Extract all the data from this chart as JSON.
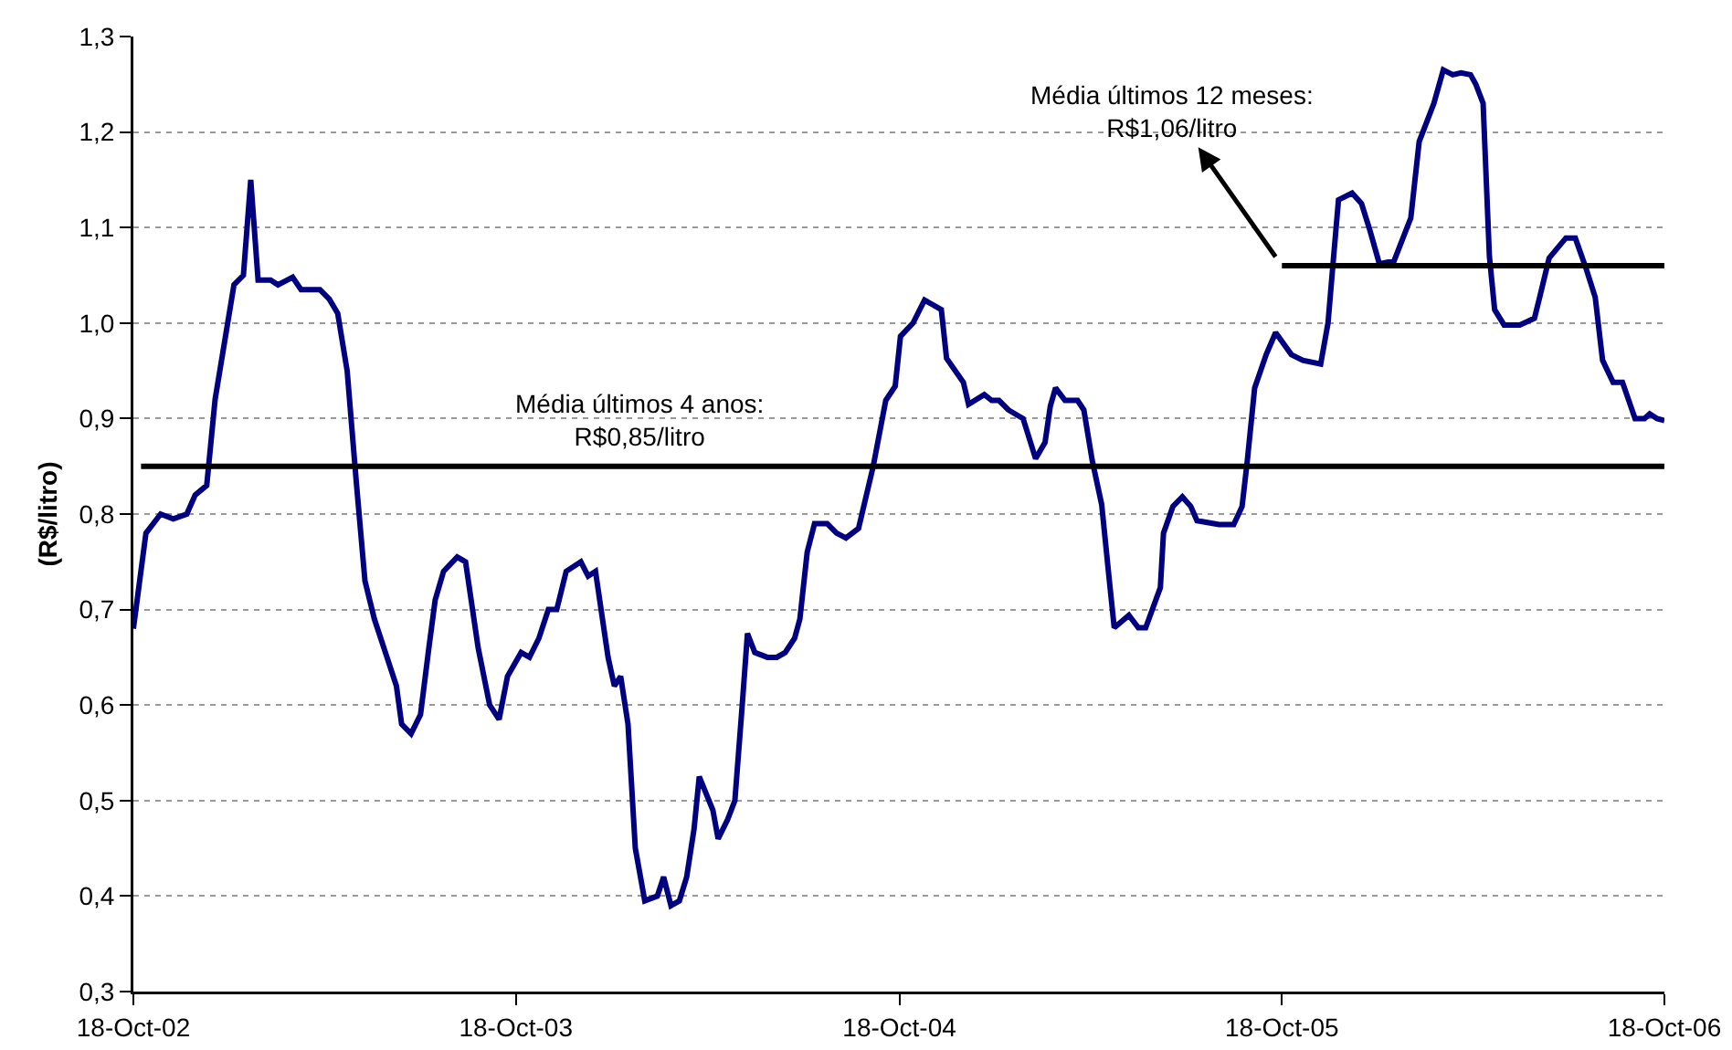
{
  "chart_data": {
    "type": "line",
    "ylabel": "(R$/litro)",
    "xlim": [
      "2002-10-18",
      "2006-10-18"
    ],
    "xticks": [
      {
        "value": "2002-10-18",
        "label": "18-Oct-02"
      },
      {
        "value": "2003-10-18",
        "label": "18-Oct-03"
      },
      {
        "value": "2004-10-18",
        "label": "18-Oct-04"
      },
      {
        "value": "2005-10-18",
        "label": "18-Oct-05"
      },
      {
        "value": "2006-10-18",
        "label": "18-Oct-06"
      }
    ],
    "ylim": [
      0.3,
      1.3
    ],
    "yticks": [
      {
        "value": 0.3,
        "label": "0,3"
      },
      {
        "value": 0.4,
        "label": "0,4"
      },
      {
        "value": 0.5,
        "label": "0,5"
      },
      {
        "value": 0.6,
        "label": "0,6"
      },
      {
        "value": 0.7,
        "label": "0,7"
      },
      {
        "value": 0.8,
        "label": "0,8"
      },
      {
        "value": 0.9,
        "label": "0,9"
      },
      {
        "value": 1.0,
        "label": "1,0"
      },
      {
        "value": 1.1,
        "label": "1,1"
      },
      {
        "value": 1.2,
        "label": "1,2"
      },
      {
        "value": 1.3,
        "label": "1,3"
      }
    ],
    "grid": "y",
    "marker": "none",
    "line_style": "solid",
    "series": [
      {
        "color": "#000080",
        "x": [
          "2002-10-18",
          "2002-10-30",
          "2002-11-13",
          "2002-11-25",
          "2002-12-08",
          "2002-12-16",
          "2002-12-27",
          "2003-01-04",
          "2003-01-13",
          "2003-01-22",
          "2003-01-31",
          "2003-02-07",
          "2003-02-14",
          "2003-02-26",
          "2003-03-05",
          "2003-03-19",
          "2003-03-27",
          "2003-04-14",
          "2003-04-23",
          "2003-05-01",
          "2003-05-10",
          "2003-05-19",
          "2003-05-27",
          "2003-06-05",
          "2003-06-17",
          "2003-06-26",
          "2003-07-01",
          "2003-07-10",
          "2003-07-19",
          "2003-07-27",
          "2003-08-02",
          "2003-08-10",
          "2003-08-23",
          "2003-08-31",
          "2003-09-12",
          "2003-09-23",
          "2003-10-02",
          "2003-10-10",
          "2003-10-23",
          "2003-10-31",
          "2003-11-09",
          "2003-11-18",
          "2003-11-26",
          "2003-12-05",
          "2003-12-19",
          "2003-12-26",
          "2004-01-02",
          "2004-01-14",
          "2004-01-20",
          "2004-01-26",
          "2004-02-02",
          "2004-02-09",
          "2004-02-18",
          "2004-03-01",
          "2004-03-07",
          "2004-03-14",
          "2004-03-22",
          "2004-03-29",
          "2004-04-05",
          "2004-04-10",
          "2004-04-23",
          "2004-04-28",
          "2004-05-07",
          "2004-05-14",
          "2004-05-21",
          "2004-05-26",
          "2004-06-02",
          "2004-06-14",
          "2004-06-23",
          "2004-07-01",
          "2004-07-10",
          "2004-07-15",
          "2004-07-22",
          "2004-07-29",
          "2004-08-10",
          "2004-08-19",
          "2004-08-28",
          "2004-09-09",
          "2004-09-23",
          "2004-10-05",
          "2004-10-14",
          "2004-10-19",
          "2004-10-31",
          "2004-11-11",
          "2004-11-27",
          "2004-12-02",
          "2004-12-18",
          "2004-12-23",
          "2005-01-07",
          "2005-01-14",
          "2005-01-21",
          "2005-01-30",
          "2005-02-13",
          "2005-02-25",
          "2005-03-06",
          "2005-03-11",
          "2005-03-16",
          "2005-03-25",
          "2005-04-06",
          "2005-04-12",
          "2005-04-20",
          "2005-04-29",
          "2005-05-06",
          "2005-05-11",
          "2005-05-25",
          "2005-06-03",
          "2005-06-10",
          "2005-06-24",
          "2005-06-27",
          "2005-07-06",
          "2005-07-15",
          "2005-07-23",
          "2005-07-29",
          "2005-08-19",
          "2005-09-02",
          "2005-09-10",
          "2005-09-15",
          "2005-09-22",
          "2005-10-03",
          "2005-10-12",
          "2005-10-27",
          "2005-11-07",
          "2005-11-24",
          "2005-12-01",
          "2005-12-06",
          "2005-12-11",
          "2005-12-24",
          "2006-01-02",
          "2006-01-10",
          "2006-01-19",
          "2006-02-02",
          "2006-02-18",
          "2006-02-26",
          "2006-03-12",
          "2006-03-21",
          "2006-03-30",
          "2006-04-07",
          "2006-04-16",
          "2006-04-21",
          "2006-04-28",
          "2006-05-04",
          "2006-05-09",
          "2006-05-18",
          "2006-06-02",
          "2006-06-16",
          "2006-06-21",
          "2006-06-30",
          "2006-07-16",
          "2006-07-25",
          "2006-08-04",
          "2006-08-13",
          "2006-08-20",
          "2006-08-30",
          "2006-09-08",
          "2006-09-20",
          "2006-09-29",
          "2006-10-04",
          "2006-10-11",
          "2006-10-18"
        ],
        "values": [
          0.68,
          0.78,
          0.8,
          0.795,
          0.8,
          0.82,
          0.83,
          0.92,
          0.98,
          1.04,
          1.05,
          1.15,
          1.045,
          1.045,
          1.04,
          1.048,
          1.035,
          1.035,
          1.025,
          1.01,
          0.95,
          0.83,
          0.73,
          0.69,
          0.65,
          0.62,
          0.58,
          0.57,
          0.59,
          0.66,
          0.71,
          0.74,
          0.755,
          0.75,
          0.66,
          0.6,
          0.585,
          0.63,
          0.655,
          0.65,
          0.67,
          0.7,
          0.7,
          0.74,
          0.75,
          0.735,
          0.74,
          0.65,
          0.62,
          0.63,
          0.58,
          0.45,
          0.395,
          0.4,
          0.42,
          0.39,
          0.395,
          0.42,
          0.47,
          0.525,
          0.49,
          0.46,
          0.48,
          0.5,
          0.6,
          0.675,
          0.655,
          0.65,
          0.65,
          0.655,
          0.67,
          0.69,
          0.76,
          0.79,
          0.79,
          0.78,
          0.775,
          0.785,
          0.85,
          0.919,
          0.934,
          0.986,
          1.0,
          1.024,
          1.014,
          0.963,
          0.938,
          0.915,
          0.925,
          0.919,
          0.919,
          0.909,
          0.9,
          0.858,
          0.875,
          0.913,
          0.932,
          0.919,
          0.919,
          0.909,
          0.856,
          0.81,
          0.734,
          0.681,
          0.694,
          0.681,
          0.681,
          0.723,
          0.78,
          0.808,
          0.818,
          0.808,
          0.793,
          0.789,
          0.789,
          0.808,
          0.856,
          0.932,
          0.967,
          0.99,
          0.967,
          0.961,
          0.957,
          1.0,
          1.065,
          1.129,
          1.136,
          1.125,
          1.097,
          1.062,
          1.065,
          1.11,
          1.19,
          1.23,
          1.265,
          1.26,
          1.262,
          1.26,
          1.25,
          1.23,
          1.07,
          1.014,
          0.998,
          0.998,
          1.005,
          1.027,
          1.068,
          1.089,
          1.089,
          1.058,
          1.027,
          0.961,
          0.938,
          0.938,
          0.9,
          0.9,
          0.905,
          0.9,
          0.898
        ]
      },
      {
        "type": "line",
        "color": "#000000",
        "x": [
          "2005-10-18",
          "2006-10-18"
        ],
        "values": [
          1.06,
          1.06
        ]
      }
    ],
    "ref_lines": [
      {
        "axis": "y",
        "value": 0.85,
        "label": "Média últimos 4 anos:\nR$0,85/litro",
        "color": "#000000"
      }
    ],
    "annotations": [
      {
        "text": "Média últimos 12 meses:\nR$1,06/litro",
        "x": "2005-10-18",
        "y": 1.06
      }
    ]
  }
}
